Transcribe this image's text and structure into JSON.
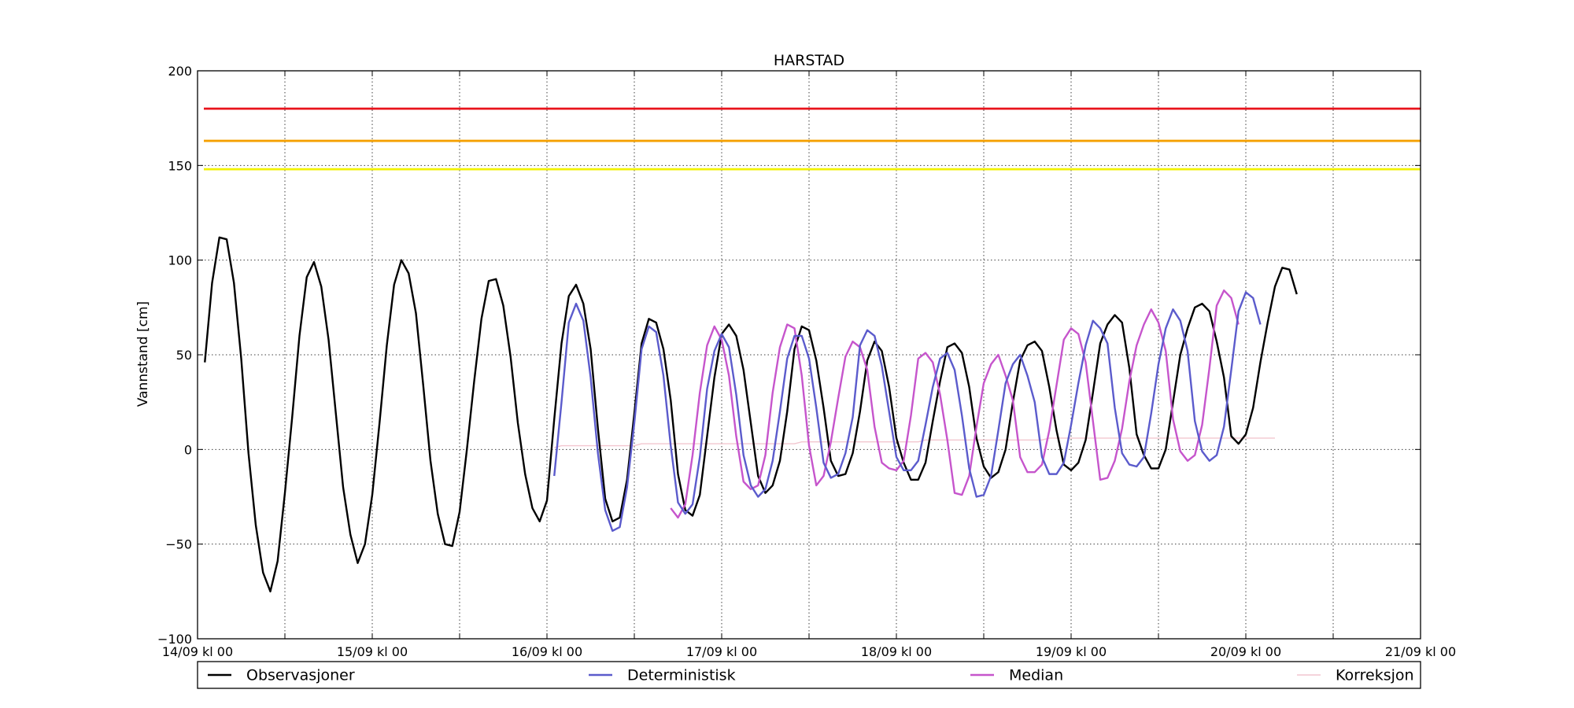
{
  "chart_data": {
    "type": "line",
    "title": "HARSTAD",
    "ylabel": "Vannstand [cm]",
    "xlabel": "",
    "ylim": [
      -100,
      200
    ],
    "yticks": [
      -100,
      -50,
      0,
      50,
      100,
      150,
      200
    ],
    "ytick_labels": [
      "−100",
      "−50",
      "0",
      "50",
      "100",
      "150",
      "200"
    ],
    "xlim": [
      0,
      168
    ],
    "xtick_hours": [
      0,
      24,
      48,
      72,
      96,
      120,
      144,
      168
    ],
    "xtick_labels": [
      "14/09 kl 00",
      "15/09 kl 00",
      "16/09 kl 00",
      "17/09 kl 00",
      "18/09 kl 00",
      "19/09 kl 00",
      "20/09 kl 00",
      "21/09 kl 00"
    ],
    "x_grid_hours": [
      0,
      12,
      24,
      36,
      48,
      60,
      72,
      84,
      96,
      108,
      120,
      132,
      144,
      156,
      168
    ],
    "grid": true,
    "legend_position": "bottom",
    "thresholds": [
      {
        "value": 180,
        "color": "#e8141c"
      },
      {
        "value": 163,
        "color": "#f5a000"
      },
      {
        "value": 148,
        "color": "#f2f200"
      }
    ],
    "series": [
      {
        "name": "Observasjoner",
        "color": "#000000",
        "start_hour": 1,
        "step_hours": 1,
        "values": [
          46,
          88,
          112,
          111,
          88,
          48,
          -2,
          -40,
          -65,
          -75,
          -59,
          -23,
          17,
          60,
          91,
          99,
          86,
          58,
          19,
          -20,
          -45,
          -60,
          -50,
          -24,
          14,
          55,
          87,
          100,
          93,
          72,
          34,
          -6,
          -34,
          -50,
          -51,
          -33,
          0,
          36,
          69,
          89,
          90,
          76,
          49,
          14,
          -13,
          -31,
          -38,
          -27,
          16,
          56,
          81,
          87,
          77,
          53,
          11,
          -26,
          -38,
          -36,
          -16,
          19,
          56,
          69,
          67,
          53,
          26,
          -13,
          -32,
          -35,
          -24,
          7,
          38,
          61,
          66,
          60,
          42,
          14,
          -14,
          -23,
          -19,
          -6,
          20,
          53,
          65,
          63,
          47,
          22,
          -6,
          -14,
          -13,
          -2,
          20,
          47,
          57,
          52,
          33,
          6,
          -7,
          -16,
          -16,
          -7,
          15,
          36,
          54,
          56,
          51,
          33,
          6,
          -9,
          -15,
          -12,
          0,
          25,
          47,
          55,
          57,
          52,
          33,
          10,
          -8,
          -11,
          -7,
          5,
          30,
          56,
          66,
          71,
          67,
          43,
          8,
          -3,
          -10,
          -10,
          0,
          25,
          50,
          64,
          75,
          77,
          73,
          57,
          38,
          7,
          3,
          8,
          22,
          46,
          67,
          86,
          96,
          95,
          82
        ]
      },
      {
        "name": "Deterministisk",
        "color": "#5b5bcc",
        "start_hour": 49,
        "step_hours": 1,
        "values": [
          -14,
          25,
          67,
          77,
          68,
          38,
          -2,
          -32,
          -43,
          -41,
          -20,
          14,
          53,
          65,
          62,
          39,
          2,
          -28,
          -34,
          -29,
          -4,
          32,
          52,
          61,
          54,
          29,
          -3,
          -19,
          -25,
          -21,
          -6,
          20,
          48,
          60,
          60,
          48,
          22,
          -7,
          -15,
          -13,
          -2,
          17,
          55,
          63,
          60,
          44,
          20,
          -4,
          -11,
          -11,
          -6,
          13,
          33,
          48,
          51,
          42,
          18,
          -10,
          -25,
          -24,
          -14,
          10,
          35,
          45,
          50,
          39,
          25,
          -4,
          -13,
          -13,
          -7,
          13,
          35,
          55,
          68,
          64,
          56,
          22,
          -2,
          -8,
          -9,
          -4,
          19,
          45,
          64,
          74,
          68,
          52,
          15,
          -1,
          -6,
          -3,
          12,
          42,
          73,
          83,
          80,
          66
        ]
      },
      {
        "name": "Median",
        "color": "#c655cc",
        "start_hour": 65,
        "step_hours": 1,
        "values": [
          -31,
          -36,
          -29,
          -3,
          30,
          55,
          65,
          58,
          39,
          7,
          -17,
          -21,
          -19,
          -3,
          30,
          54,
          66,
          64,
          39,
          2,
          -19,
          -14,
          4,
          27,
          49,
          57,
          54,
          42,
          12,
          -7,
          -10,
          -11,
          -6,
          18,
          48,
          51,
          46,
          29,
          5,
          -23,
          -24,
          -14,
          12,
          35,
          45,
          50,
          39,
          26,
          -4,
          -12,
          -12,
          -8,
          10,
          34,
          58,
          64,
          61,
          46,
          15,
          -16,
          -15,
          -6,
          11,
          36,
          55,
          66,
          74,
          67,
          52,
          16,
          -1,
          -6,
          -3,
          13,
          43,
          76,
          84,
          80,
          66
        ]
      },
      {
        "name": "Korreksjon",
        "color": "#f2c6cf",
        "start_hour": 49,
        "step_hours": 1,
        "values": [
          1,
          2,
          2,
          2,
          2,
          2,
          2,
          2,
          2,
          2,
          2,
          2,
          3,
          3,
          3,
          3,
          3,
          3,
          3,
          3,
          3,
          3,
          3,
          3,
          3,
          3,
          3,
          3,
          3,
          3,
          3,
          3,
          3,
          3,
          4,
          4,
          4,
          4,
          4,
          4,
          4,
          4,
          4,
          4,
          4,
          4,
          4,
          4,
          4,
          4,
          4,
          5,
          5,
          5,
          5,
          5,
          5,
          5,
          5,
          5,
          5,
          5,
          5,
          5,
          5,
          5,
          5,
          5,
          6,
          6,
          6,
          6,
          6,
          6,
          6,
          6,
          6,
          6,
          6,
          6,
          6,
          6,
          6,
          6,
          6,
          6,
          6,
          6,
          6,
          6,
          6,
          6,
          6,
          6,
          6,
          6,
          6,
          6,
          6,
          6
        ]
      }
    ]
  }
}
